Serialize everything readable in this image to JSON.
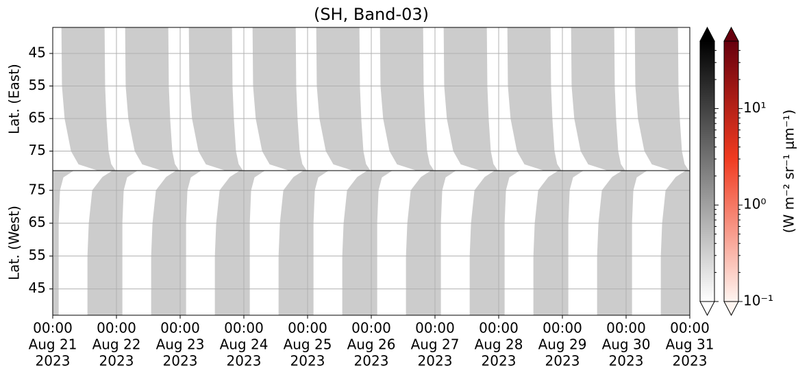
{
  "chart_data": [
    {
      "type": "swath",
      "title": "(SH, Band-03)",
      "ylabel": "Lat. (East)",
      "ylim": [
        81,
        37
      ],
      "yticks": [
        45,
        55,
        65,
        75
      ],
      "xlim": [
        "2023-08-21T00:00Z",
        "2023-08-31T00:00Z"
      ],
      "days": [
        "2023-08-21T00:00Z",
        "2023-08-22T00:00Z",
        "2023-08-23T00:00Z",
        "2023-08-24T00:00Z",
        "2023-08-25T00:00Z",
        "2023-08-26T00:00Z",
        "2023-08-27T00:00Z",
        "2023-08-28T00:00Z",
        "2023-08-29T00:00Z",
        "2023-08-30T00:00Z"
      ],
      "profile": {
        "lats": [
          37,
          55,
          65,
          75,
          79,
          81
        ],
        "start_hours": [
          3.4,
          3.6,
          4.6,
          7.0,
          9.8,
          17.5
        ],
        "end_hours": [
          19.4,
          19.6,
          20.1,
          20.9,
          21.9,
          23.5
        ]
      },
      "color": "#cccccc",
      "grid": true
    },
    {
      "type": "swath",
      "ylabel": "Lat. (West)",
      "ylim": [
        37,
        81
      ],
      "yticks": [
        45,
        55,
        65,
        75
      ],
      "xlim": [
        "2023-08-21T00:00Z",
        "2023-08-31T00:00Z"
      ],
      "xticks": [
        {
          "value": "2023-08-21T00:00Z",
          "label": [
            "00:00",
            "Aug 21",
            "2023"
          ]
        },
        {
          "value": "2023-08-22T00:00Z",
          "label": [
            "00:00",
            "Aug 22",
            "2023"
          ]
        },
        {
          "value": "2023-08-23T00:00Z",
          "label": [
            "00:00",
            "Aug 23",
            "2023"
          ]
        },
        {
          "value": "2023-08-24T00:00Z",
          "label": [
            "00:00",
            "Aug 24",
            "2023"
          ]
        },
        {
          "value": "2023-08-25T00:00Z",
          "label": [
            "00:00",
            "Aug 25",
            "2023"
          ]
        },
        {
          "value": "2023-08-26T00:00Z",
          "label": [
            "00:00",
            "Aug 26",
            "2023"
          ]
        },
        {
          "value": "2023-08-27T00:00Z",
          "label": [
            "00:00",
            "Aug 27",
            "2023"
          ]
        },
        {
          "value": "2023-08-28T00:00Z",
          "label": [
            "00:00",
            "Aug 28",
            "2023"
          ]
        },
        {
          "value": "2023-08-29T00:00Z",
          "label": [
            "00:00",
            "Aug 29",
            "2023"
          ]
        },
        {
          "value": "2023-08-30T00:00Z",
          "label": [
            "00:00",
            "Aug 30",
            "2023"
          ]
        },
        {
          "value": "2023-08-31T00:00Z",
          "label": [
            "00:00",
            "Aug 31",
            "2023"
          ]
        }
      ],
      "days": [
        "2023-08-20T00:00Z",
        "2023-08-21T00:00Z",
        "2023-08-22T00:00Z",
        "2023-08-23T00:00Z",
        "2023-08-24T00:00Z",
        "2023-08-25T00:00Z",
        "2023-08-26T00:00Z",
        "2023-08-27T00:00Z",
        "2023-08-28T00:00Z",
        "2023-08-29T00:00Z",
        "2023-08-30T00:00Z"
      ],
      "profile": {
        "lats": [
          81,
          79,
          75,
          65,
          55,
          45,
          37
        ],
        "start_hours": [
          22.7,
          18.8,
          15.0,
          13.7,
          13.2,
          13.2,
          13.2
        ],
        "end_hours": [
          31.7,
          27.9,
          26.6,
          26.1,
          26.1,
          26.1,
          26.1
        ]
      },
      "color": "#cccccc",
      "grid": true
    },
    {
      "type": "colorbar",
      "scale": "log",
      "clim": [
        0.1,
        50
      ],
      "ticks": [
        {
          "value": 0.1,
          "label": "10⁻¹"
        },
        {
          "value": 1,
          "label": "10⁰"
        },
        {
          "value": 10,
          "label": "10¹"
        }
      ],
      "label": "(W m⁻² sr⁻¹ μm⁻¹)",
      "colormaps": [
        [
          "#ffffff",
          "#000000"
        ],
        [
          "#fff5f0",
          "#67000d"
        ]
      ]
    }
  ]
}
